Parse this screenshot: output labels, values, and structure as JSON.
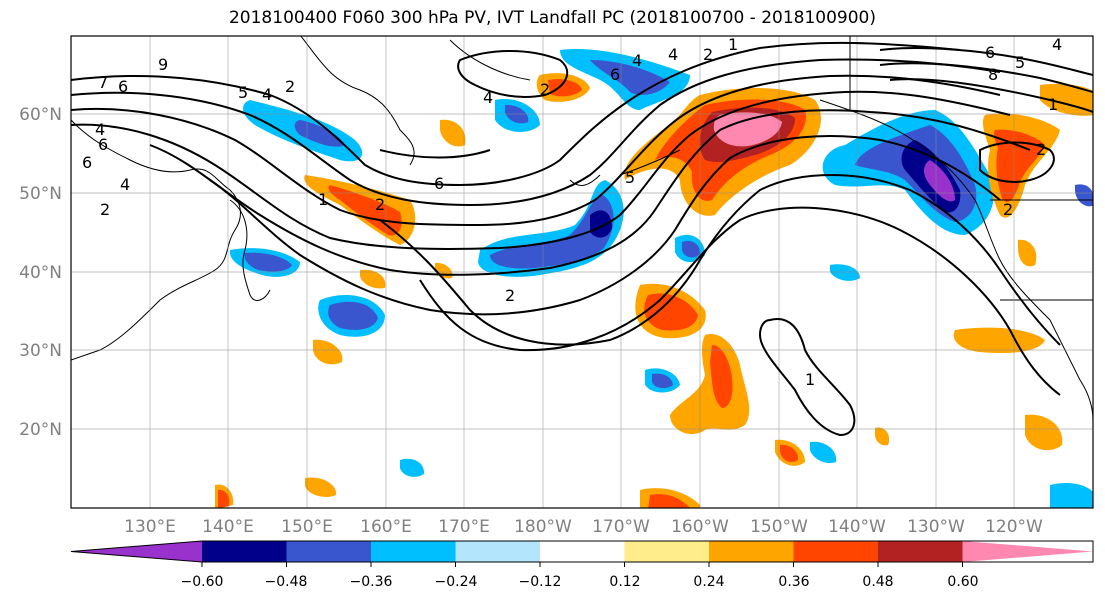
{
  "title": "2018100400 F060 300 hPa PV, IVT Landfall PC (2018100700 - 2018100900)",
  "map": {
    "lon_labels": [
      "130°E",
      "140°E",
      "150°E",
      "160°E",
      "170°E",
      "180°W",
      "170°W",
      "160°W",
      "150°W",
      "140°W",
      "130°W",
      "120°W"
    ],
    "lat_labels": [
      "60°N",
      "50°N",
      "40°N",
      "30°N",
      "20°N"
    ],
    "contour_labels": [
      "9",
      "6",
      "4",
      "2",
      "7",
      "6",
      "4",
      "2",
      "5",
      "4",
      "2",
      "1",
      "6",
      "4",
      "5",
      "2",
      "2",
      "6",
      "4",
      "1",
      "2",
      "1",
      "6",
      "8",
      "5",
      "4",
      "1",
      "2",
      "6",
      "4",
      "2"
    ],
    "colors": {
      "neg_060": "#9932cc",
      "neg_048": "#00008b",
      "neg_036": "#3a56cf",
      "neg_024": "#00bfff",
      "neg_012": "#b3e5fc",
      "pos_012": "#ffec8b",
      "pos_024": "#ffa500",
      "pos_036": "#ff4500",
      "pos_048": "#b22222",
      "pos_060": "#ff88b0"
    }
  },
  "colorbar": {
    "ticks": [
      "−0.60",
      "−0.48",
      "−0.36",
      "−0.24",
      "−0.12",
      "0.12",
      "0.24",
      "0.36",
      "0.48",
      "0.60"
    ],
    "bins": [
      "#9932cc",
      "#00008b",
      "#3a56cf",
      "#00bfff",
      "#b3e5fc",
      "#ffffff",
      "#ffec8b",
      "#ffa500",
      "#ff4500",
      "#b22222",
      "#ff88b0"
    ]
  }
}
